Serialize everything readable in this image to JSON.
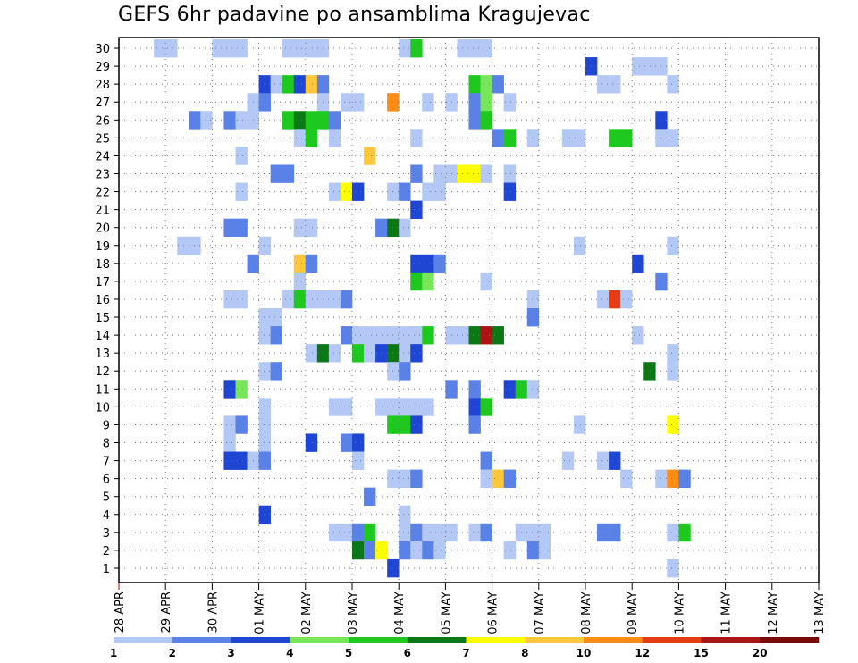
{
  "chart_data": {
    "type": "heatmap",
    "title": "GEFS 6hr padavine po ansamblima Kragujevac",
    "xlabel": "",
    "ylabel": "",
    "x_tick_labels": [
      "28 APR",
      "29 APR",
      "30 APR",
      "01 MAY",
      "02 MAY",
      "03 MAY",
      "04 MAY",
      "05 MAY",
      "06 MAY",
      "07 MAY",
      "08 MAY",
      "09 MAY",
      "10 MAY",
      "11 MAY",
      "12 MAY",
      "13 MAY"
    ],
    "y_tick_labels": [
      "1",
      "2",
      "3",
      "4",
      "5",
      "6",
      "7",
      "8",
      "9",
      "10",
      "11",
      "12",
      "13",
      "14",
      "15",
      "16",
      "17",
      "18",
      "19",
      "20",
      "21",
      "22",
      "23",
      "24",
      "25",
      "26",
      "27",
      "28",
      "29",
      "30"
    ],
    "xlim": [
      0,
      15
    ],
    "ylim": [
      0.5,
      30.5
    ],
    "grid": true,
    "steps_per_day": 4,
    "colorbar": {
      "labels": [
        "1",
        "2",
        "3",
        "4",
        "5",
        "6",
        "7",
        "8",
        "10",
        "12",
        "15",
        "20"
      ],
      "colors": [
        "#b4c8f5",
        "#5a82e6",
        "#1e46d2",
        "#78e65a",
        "#1ec81e",
        "#0a7814",
        "#ffff00",
        "#ffc83c",
        "#ff8c14",
        "#e63c14",
        "#aa1414",
        "#780a0a"
      ]
    },
    "cells": [
      [
        3,
        30,
        1
      ],
      [
        4,
        30,
        1
      ],
      [
        8,
        30,
        1
      ],
      [
        9,
        30,
        1
      ],
      [
        10,
        30,
        1
      ],
      [
        14,
        30,
        1
      ],
      [
        15,
        30,
        1
      ],
      [
        16,
        30,
        1
      ],
      [
        16,
        30,
        1
      ],
      [
        17,
        30,
        1
      ],
      [
        24,
        30,
        1
      ],
      [
        25,
        30,
        5
      ],
      [
        29,
        30,
        1
      ],
      [
        30,
        30,
        1
      ],
      [
        31,
        30,
        1
      ],
      [
        40,
        29,
        3
      ],
      [
        44,
        29,
        1
      ],
      [
        45,
        29,
        1
      ],
      [
        46,
        29,
        1
      ],
      [
        12,
        28,
        3
      ],
      [
        13,
        28,
        1
      ],
      [
        14,
        28,
        5
      ],
      [
        15,
        28,
        3
      ],
      [
        16,
        28,
        8
      ],
      [
        17,
        28,
        2
      ],
      [
        30,
        28,
        5
      ],
      [
        31,
        28,
        4
      ],
      [
        32,
        28,
        2
      ],
      [
        41,
        28,
        1
      ],
      [
        42,
        28,
        1
      ],
      [
        47,
        28,
        1
      ],
      [
        11,
        27,
        1
      ],
      [
        12,
        27,
        2
      ],
      [
        17,
        27,
        1
      ],
      [
        19,
        27,
        1
      ],
      [
        20,
        27,
        1
      ],
      [
        23,
        27,
        9
      ],
      [
        26,
        27,
        1
      ],
      [
        28,
        27,
        1
      ],
      [
        30,
        27,
        2
      ],
      [
        31,
        27,
        4
      ],
      [
        33,
        27,
        1
      ],
      [
        6,
        26,
        2
      ],
      [
        7,
        26,
        1
      ],
      [
        9,
        26,
        2
      ],
      [
        10,
        26,
        1
      ],
      [
        11,
        26,
        1
      ],
      [
        14,
        26,
        5
      ],
      [
        15,
        26,
        6
      ],
      [
        16,
        26,
        5
      ],
      [
        17,
        26,
        5
      ],
      [
        18,
        26,
        2
      ],
      [
        30,
        26,
        2
      ],
      [
        31,
        26,
        5
      ],
      [
        46,
        26,
        3
      ],
      [
        15,
        25,
        1
      ],
      [
        16,
        25,
        5
      ],
      [
        18,
        25,
        1
      ],
      [
        25,
        25,
        1
      ],
      [
        32,
        25,
        2
      ],
      [
        33,
        25,
        5
      ],
      [
        35,
        25,
        1
      ],
      [
        38,
        25,
        1
      ],
      [
        39,
        25,
        1
      ],
      [
        42,
        25,
        5
      ],
      [
        43,
        25,
        5
      ],
      [
        46,
        25,
        1
      ],
      [
        47,
        25,
        1
      ],
      [
        10,
        24,
        1
      ],
      [
        21,
        24,
        8
      ],
      [
        13,
        23,
        2
      ],
      [
        14,
        23,
        2
      ],
      [
        25,
        23,
        2
      ],
      [
        27,
        23,
        1
      ],
      [
        28,
        23,
        1
      ],
      [
        29,
        23,
        7
      ],
      [
        30,
        23,
        7
      ],
      [
        31,
        23,
        1
      ],
      [
        33,
        23,
        1
      ],
      [
        10,
        22,
        1
      ],
      [
        18,
        22,
        1
      ],
      [
        19,
        22,
        7
      ],
      [
        20,
        22,
        3
      ],
      [
        23,
        22,
        1
      ],
      [
        24,
        22,
        2
      ],
      [
        26,
        22,
        1
      ],
      [
        27,
        22,
        1
      ],
      [
        33,
        22,
        3
      ],
      [
        25,
        21,
        3
      ],
      [
        9,
        20,
        2
      ],
      [
        10,
        20,
        2
      ],
      [
        15,
        20,
        1
      ],
      [
        16,
        20,
        1
      ],
      [
        22,
        20,
        2
      ],
      [
        23,
        20,
        6
      ],
      [
        24,
        20,
        1
      ],
      [
        5,
        19,
        1
      ],
      [
        6,
        19,
        1
      ],
      [
        12,
        19,
        1
      ],
      [
        39,
        19,
        1
      ],
      [
        47,
        19,
        1
      ],
      [
        11,
        18,
        2
      ],
      [
        15,
        18,
        8
      ],
      [
        16,
        18,
        2
      ],
      [
        25,
        18,
        3
      ],
      [
        26,
        18,
        3
      ],
      [
        27,
        18,
        2
      ],
      [
        44,
        18,
        3
      ],
      [
        15,
        17,
        1
      ],
      [
        25,
        17,
        5
      ],
      [
        26,
        17,
        4
      ],
      [
        31,
        17,
        1
      ],
      [
        46,
        17,
        2
      ],
      [
        9,
        16,
        1
      ],
      [
        10,
        16,
        1
      ],
      [
        14,
        16,
        1
      ],
      [
        15,
        16,
        5
      ],
      [
        16,
        16,
        1
      ],
      [
        17,
        16,
        1
      ],
      [
        18,
        16,
        1
      ],
      [
        19,
        16,
        2
      ],
      [
        35,
        16,
        1
      ],
      [
        41,
        16,
        1
      ],
      [
        42,
        16,
        10
      ],
      [
        43,
        16,
        1
      ],
      [
        12,
        15,
        1
      ],
      [
        13,
        15,
        1
      ],
      [
        35,
        15,
        2
      ],
      [
        12,
        14,
        1
      ],
      [
        13,
        14,
        2
      ],
      [
        19,
        14,
        2
      ],
      [
        20,
        14,
        1
      ],
      [
        21,
        14,
        1
      ],
      [
        22,
        14,
        1
      ],
      [
        23,
        14,
        1
      ],
      [
        24,
        14,
        1
      ],
      [
        25,
        14,
        1
      ],
      [
        26,
        14,
        5
      ],
      [
        28,
        14,
        1
      ],
      [
        29,
        14,
        1
      ],
      [
        30,
        14,
        6
      ],
      [
        31,
        14,
        11
      ],
      [
        32,
        14,
        6
      ],
      [
        44,
        14,
        1
      ],
      [
        16,
        13,
        1
      ],
      [
        17,
        13,
        6
      ],
      [
        18,
        13,
        1
      ],
      [
        20,
        13,
        5
      ],
      [
        21,
        13,
        1
      ],
      [
        22,
        13,
        3
      ],
      [
        23,
        13,
        6
      ],
      [
        24,
        13,
        1
      ],
      [
        25,
        13,
        3
      ],
      [
        47,
        13,
        1
      ],
      [
        12,
        12,
        1
      ],
      [
        13,
        12,
        2
      ],
      [
        23,
        12,
        1
      ],
      [
        24,
        12,
        2
      ],
      [
        45,
        12,
        6
      ],
      [
        47,
        12,
        1
      ],
      [
        9,
        11,
        3
      ],
      [
        10,
        11,
        4
      ],
      [
        28,
        11,
        2
      ],
      [
        30,
        11,
        2
      ],
      [
        33,
        11,
        3
      ],
      [
        34,
        11,
        5
      ],
      [
        35,
        11,
        1
      ],
      [
        12,
        10,
        1
      ],
      [
        18,
        10,
        1
      ],
      [
        19,
        10,
        1
      ],
      [
        22,
        10,
        1
      ],
      [
        23,
        10,
        1
      ],
      [
        24,
        10,
        1
      ],
      [
        25,
        10,
        1
      ],
      [
        26,
        10,
        1
      ],
      [
        30,
        10,
        3
      ],
      [
        31,
        10,
        5
      ],
      [
        9,
        9,
        1
      ],
      [
        10,
        9,
        2
      ],
      [
        12,
        9,
        1
      ],
      [
        23,
        9,
        5
      ],
      [
        24,
        9,
        5
      ],
      [
        25,
        9,
        3
      ],
      [
        30,
        9,
        2
      ],
      [
        39,
        9,
        1
      ],
      [
        47,
        9,
        7
      ],
      [
        9,
        8,
        1
      ],
      [
        12,
        8,
        1
      ],
      [
        16,
        8,
        3
      ],
      [
        19,
        8,
        2
      ],
      [
        20,
        8,
        3
      ],
      [
        9,
        7,
        3
      ],
      [
        10,
        7,
        3
      ],
      [
        11,
        7,
        1
      ],
      [
        12,
        7,
        2
      ],
      [
        20,
        7,
        1
      ],
      [
        31,
        7,
        2
      ],
      [
        38,
        7,
        1
      ],
      [
        41,
        7,
        1
      ],
      [
        42,
        7,
        3
      ],
      [
        23,
        6,
        1
      ],
      [
        24,
        6,
        1
      ],
      [
        25,
        6,
        2
      ],
      [
        31,
        6,
        1
      ],
      [
        32,
        6,
        8
      ],
      [
        33,
        6,
        2
      ],
      [
        43,
        6,
        1
      ],
      [
        46,
        6,
        1
      ],
      [
        47,
        6,
        9
      ],
      [
        48,
        6,
        2
      ],
      [
        21,
        5,
        2
      ],
      [
        12,
        4,
        3
      ],
      [
        24,
        4,
        1
      ],
      [
        18,
        3,
        1
      ],
      [
        19,
        3,
        1
      ],
      [
        20,
        3,
        2
      ],
      [
        21,
        3,
        5
      ],
      [
        24,
        3,
        1
      ],
      [
        25,
        3,
        2
      ],
      [
        26,
        3,
        1
      ],
      [
        27,
        3,
        1
      ],
      [
        28,
        3,
        1
      ],
      [
        30,
        3,
        1
      ],
      [
        31,
        3,
        2
      ],
      [
        34,
        3,
        1
      ],
      [
        35,
        3,
        1
      ],
      [
        36,
        3,
        1
      ],
      [
        41,
        3,
        2
      ],
      [
        42,
        3,
        2
      ],
      [
        47,
        3,
        1
      ],
      [
        48,
        3,
        5
      ],
      [
        20,
        2,
        6
      ],
      [
        21,
        2,
        2
      ],
      [
        22,
        2,
        7
      ],
      [
        24,
        2,
        2
      ],
      [
        25,
        2,
        1
      ],
      [
        26,
        2,
        2
      ],
      [
        27,
        2,
        1
      ],
      [
        33,
        2,
        1
      ],
      [
        35,
        2,
        2
      ],
      [
        36,
        2,
        1
      ],
      [
        23,
        1,
        3
      ],
      [
        47,
        1,
        1
      ]
    ]
  }
}
